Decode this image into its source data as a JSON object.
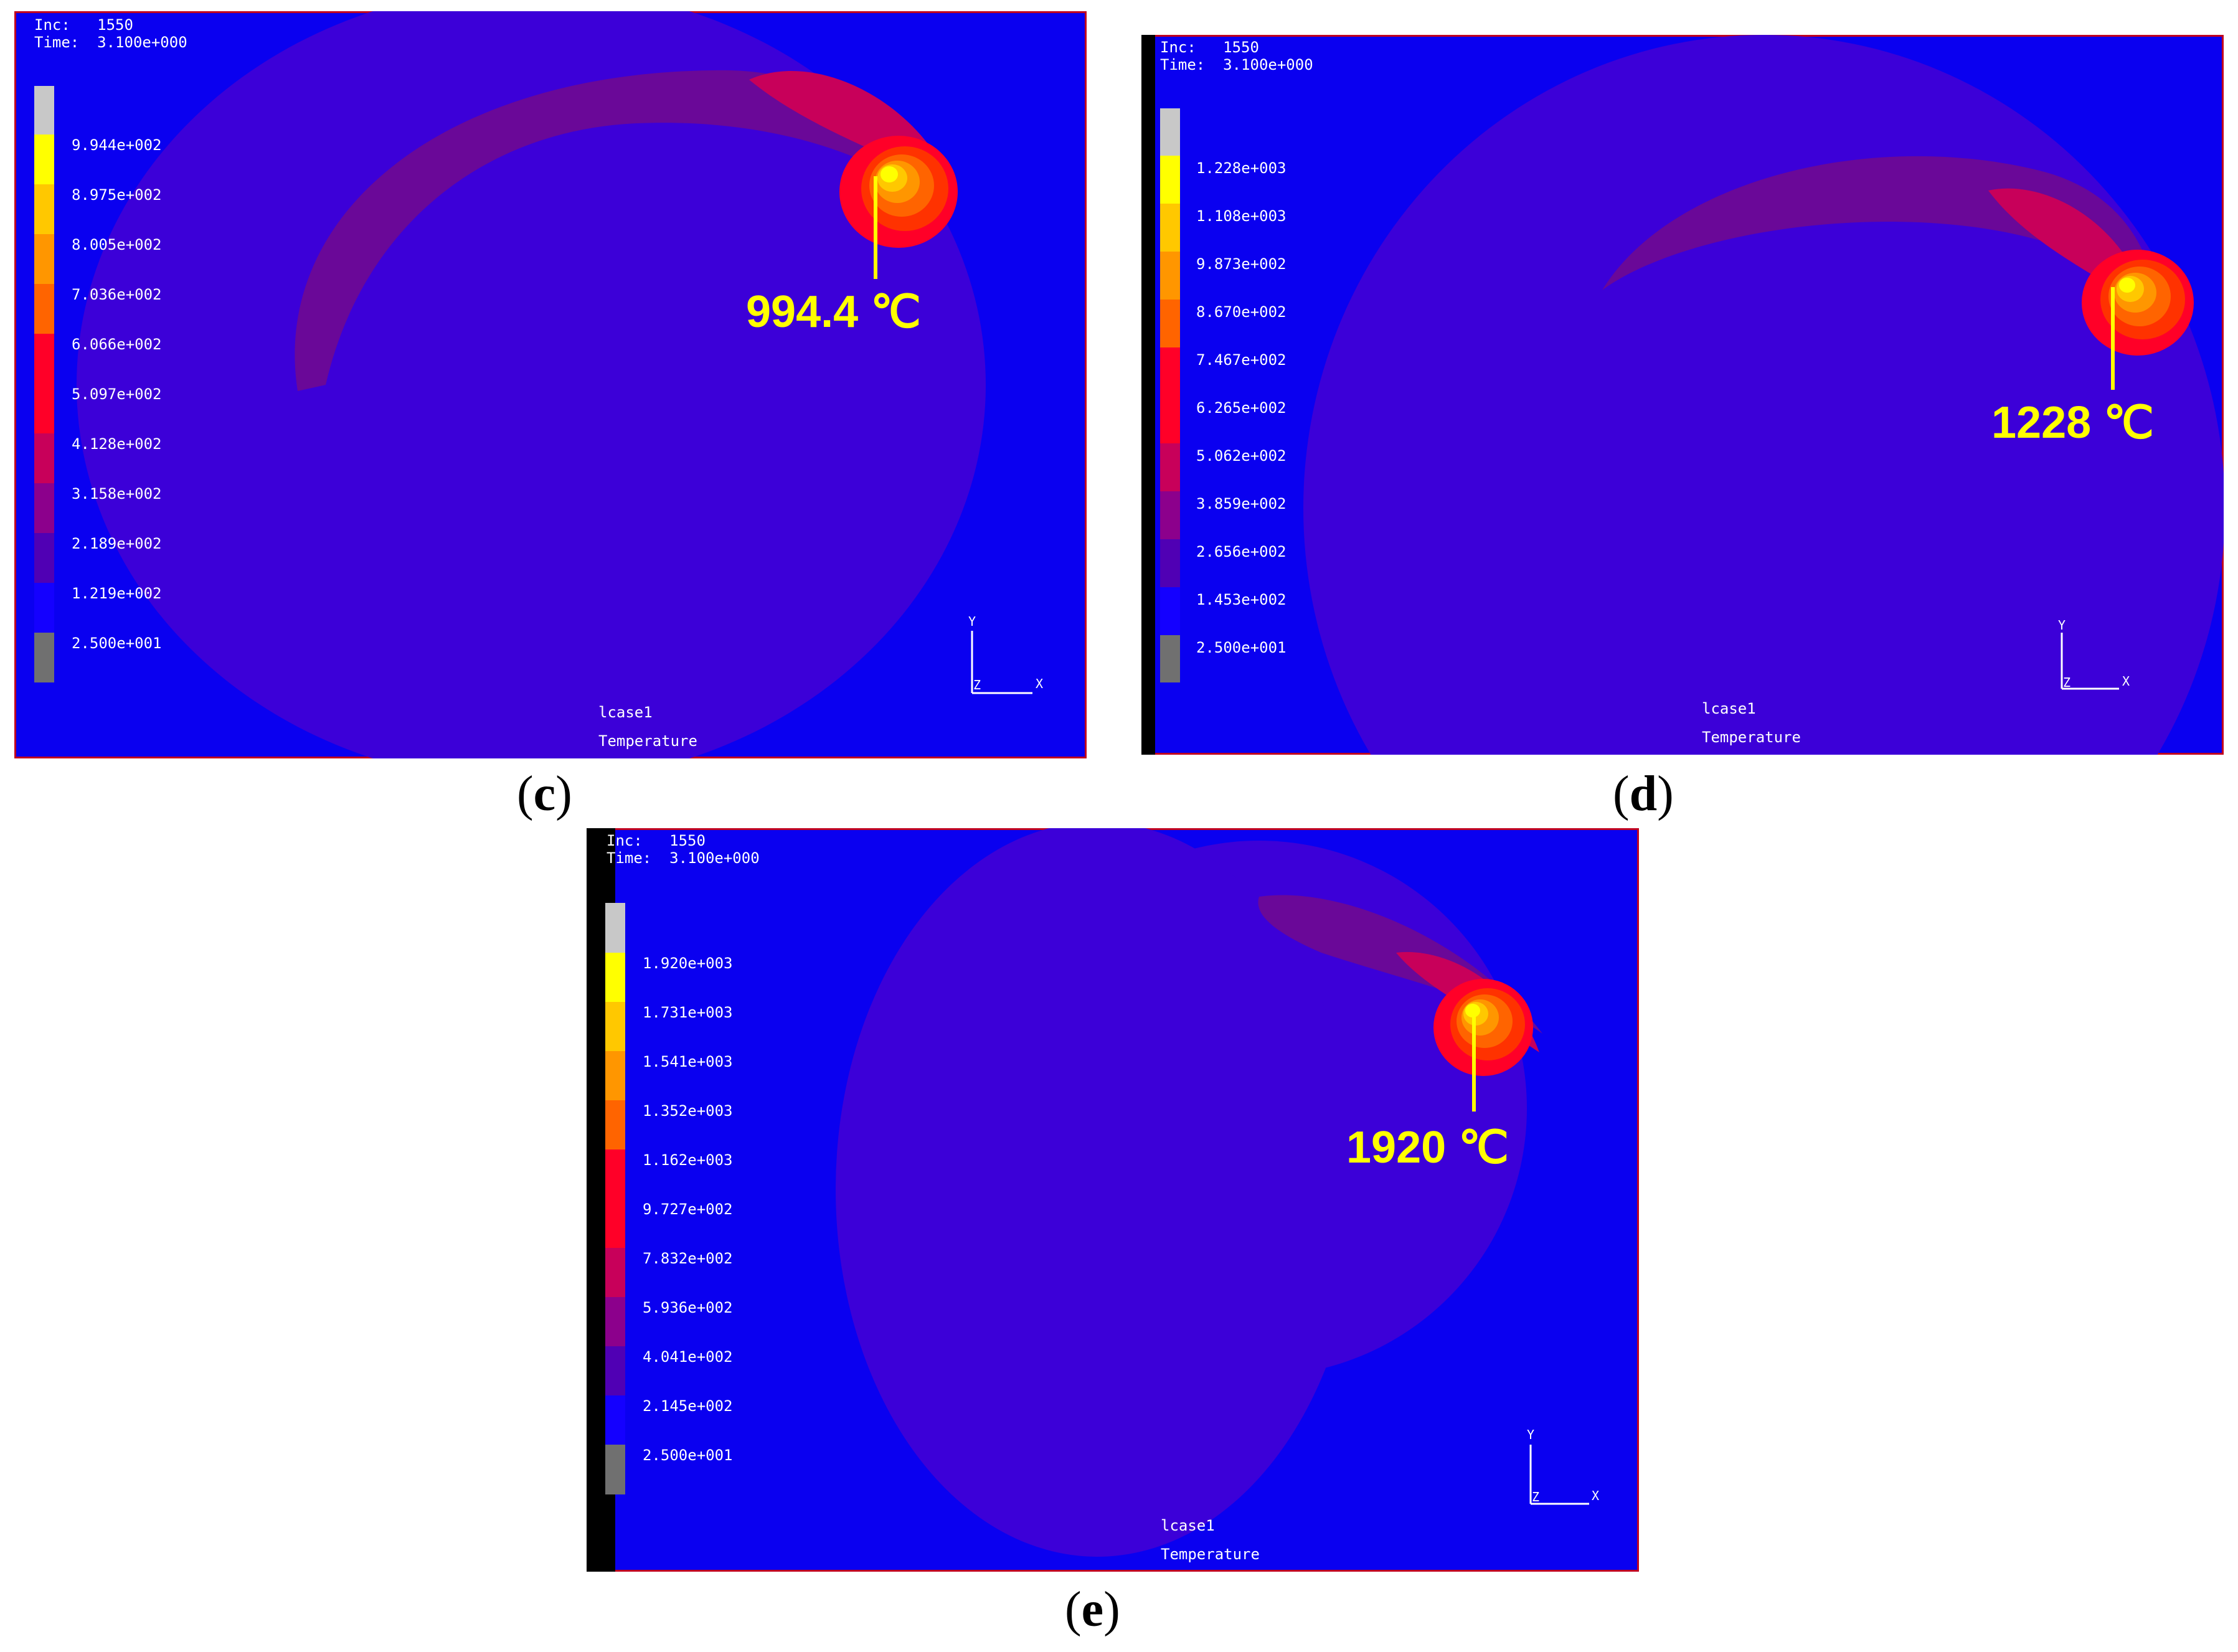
{
  "panels": [
    {
      "id": "c",
      "caption": "c",
      "inc_label": "Inc:",
      "inc_value": "1550",
      "time_label": "Time:",
      "time_value": "3.100e+000",
      "legend": [
        "9.944e+002",
        "8.975e+002",
        "8.005e+002",
        "7.036e+002",
        "6.066e+002",
        "5.097e+002",
        "4.128e+002",
        "3.158e+002",
        "2.189e+002",
        "1.219e+002",
        "2.500e+001"
      ],
      "peak_label": "994.4 ℃",
      "case_label": "lcase1",
      "quantity_label": "Temperature",
      "axis_y": "Y",
      "axis_z": "Z",
      "axis_x": "X"
    },
    {
      "id": "d",
      "caption": "d",
      "inc_label": "Inc:",
      "inc_value": "1550",
      "time_label": "Time:",
      "time_value": "3.100e+000",
      "legend": [
        "1.228e+003",
        "1.108e+003",
        "9.873e+002",
        "8.670e+002",
        "7.467e+002",
        "6.265e+002",
        "5.062e+002",
        "3.859e+002",
        "2.656e+002",
        "1.453e+002",
        "2.500e+001"
      ],
      "peak_label": "1228 ℃",
      "case_label": "lcase1",
      "quantity_label": "Temperature",
      "axis_y": "Y",
      "axis_z": "Z",
      "axis_x": "X"
    },
    {
      "id": "e",
      "caption": "e",
      "inc_label": "Inc:",
      "inc_value": "1550",
      "time_label": "Time:",
      "time_value": "3.100e+000",
      "legend": [
        "1.920e+003",
        "1.731e+003",
        "1.541e+003",
        "1.352e+003",
        "1.162e+003",
        "9.727e+002",
        "7.832e+002",
        "5.936e+002",
        "4.041e+002",
        "2.145e+002",
        "2.500e+001"
      ],
      "peak_label": "1920 ℃",
      "case_label": "lcase1",
      "quantity_label": "Temperature",
      "axis_y": "Y",
      "axis_z": "Z",
      "axis_x": "X"
    }
  ],
  "colors": {
    "background_blue": "#0a00f0",
    "disc_purple": "#3c00d8",
    "arc_purple": "#6a0898",
    "legend_steps": [
      "#c8c8c8",
      "#ffff00",
      "#ffc800",
      "#ff9600",
      "#ff6400",
      "#ff3200",
      "#ff0028",
      "#c8005a",
      "#8c008c",
      "#5000b4",
      "#1400ff",
      "#707070"
    ],
    "peak_text": "#ffff00",
    "frame": "#c00020"
  }
}
